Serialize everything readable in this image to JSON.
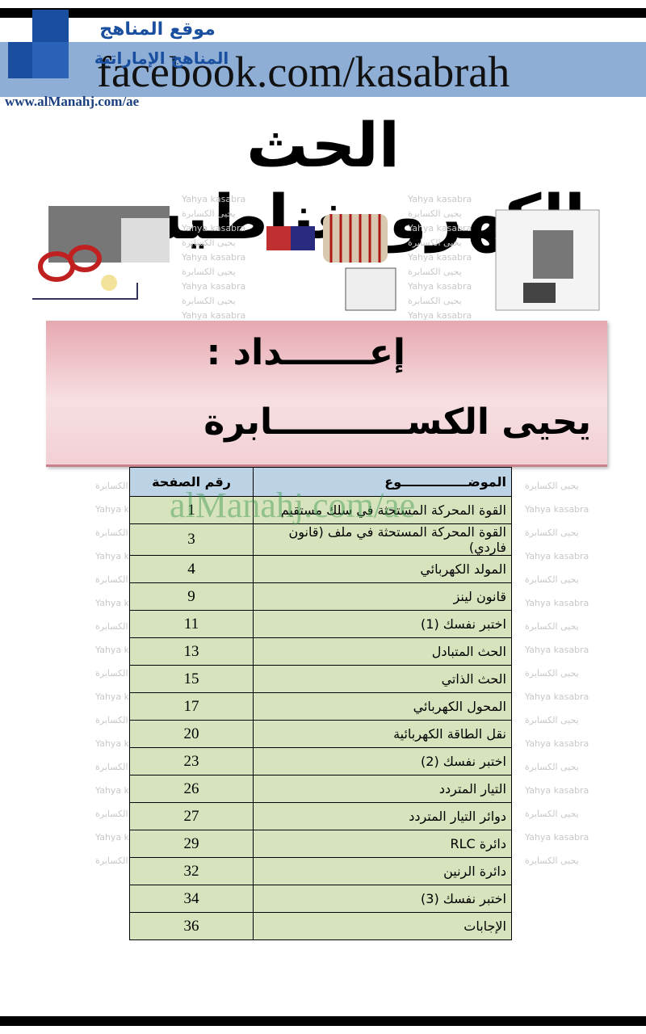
{
  "header": {
    "site_name": "موقع المناهج",
    "site_subtitle": "المناهج الإماراتية",
    "facebook": "facebook.com/kasabrah",
    "website": "www.alManahj.com/ae"
  },
  "title": "الحث الكهرومغناطيسي",
  "author_box": {
    "label": "إعـــــــداد :",
    "author": "يحيى الكســـــــــــابرة"
  },
  "watermarks": {
    "site": "alManahj.com/ae",
    "latin": "Yahya kasabra",
    "arabic": "يحيى الكسابرة"
  },
  "table": {
    "header": [
      "الموضـــــــــــــــوع",
      "رقم الصفحة"
    ],
    "rows": [
      [
        "القوة المحركة المستحثة في سلك مستقيم",
        1
      ],
      [
        "القوة المحركة المستحثة في ملف (قانون فاردي)",
        3
      ],
      [
        "المولد الكهربائي",
        4
      ],
      [
        "قانون لينز",
        9
      ],
      [
        "اختبر نفسك (1)",
        11
      ],
      [
        "الحث المتبادل",
        13
      ],
      [
        "الحث الذاتي",
        15
      ],
      [
        "المحول الكهربائي",
        17
      ],
      [
        "نقل الطاقة الكهربائية",
        20
      ],
      [
        "اختبر نفسك (2)",
        23
      ],
      [
        "التيار المتردد",
        26
      ],
      [
        "دوائر التيار المتردد",
        27
      ],
      [
        "دائرة RLC",
        29
      ],
      [
        "دائرة الرنين",
        32
      ],
      [
        "اختبر نفسك (3)",
        34
      ],
      [
        "الإجابات",
        36
      ]
    ]
  }
}
